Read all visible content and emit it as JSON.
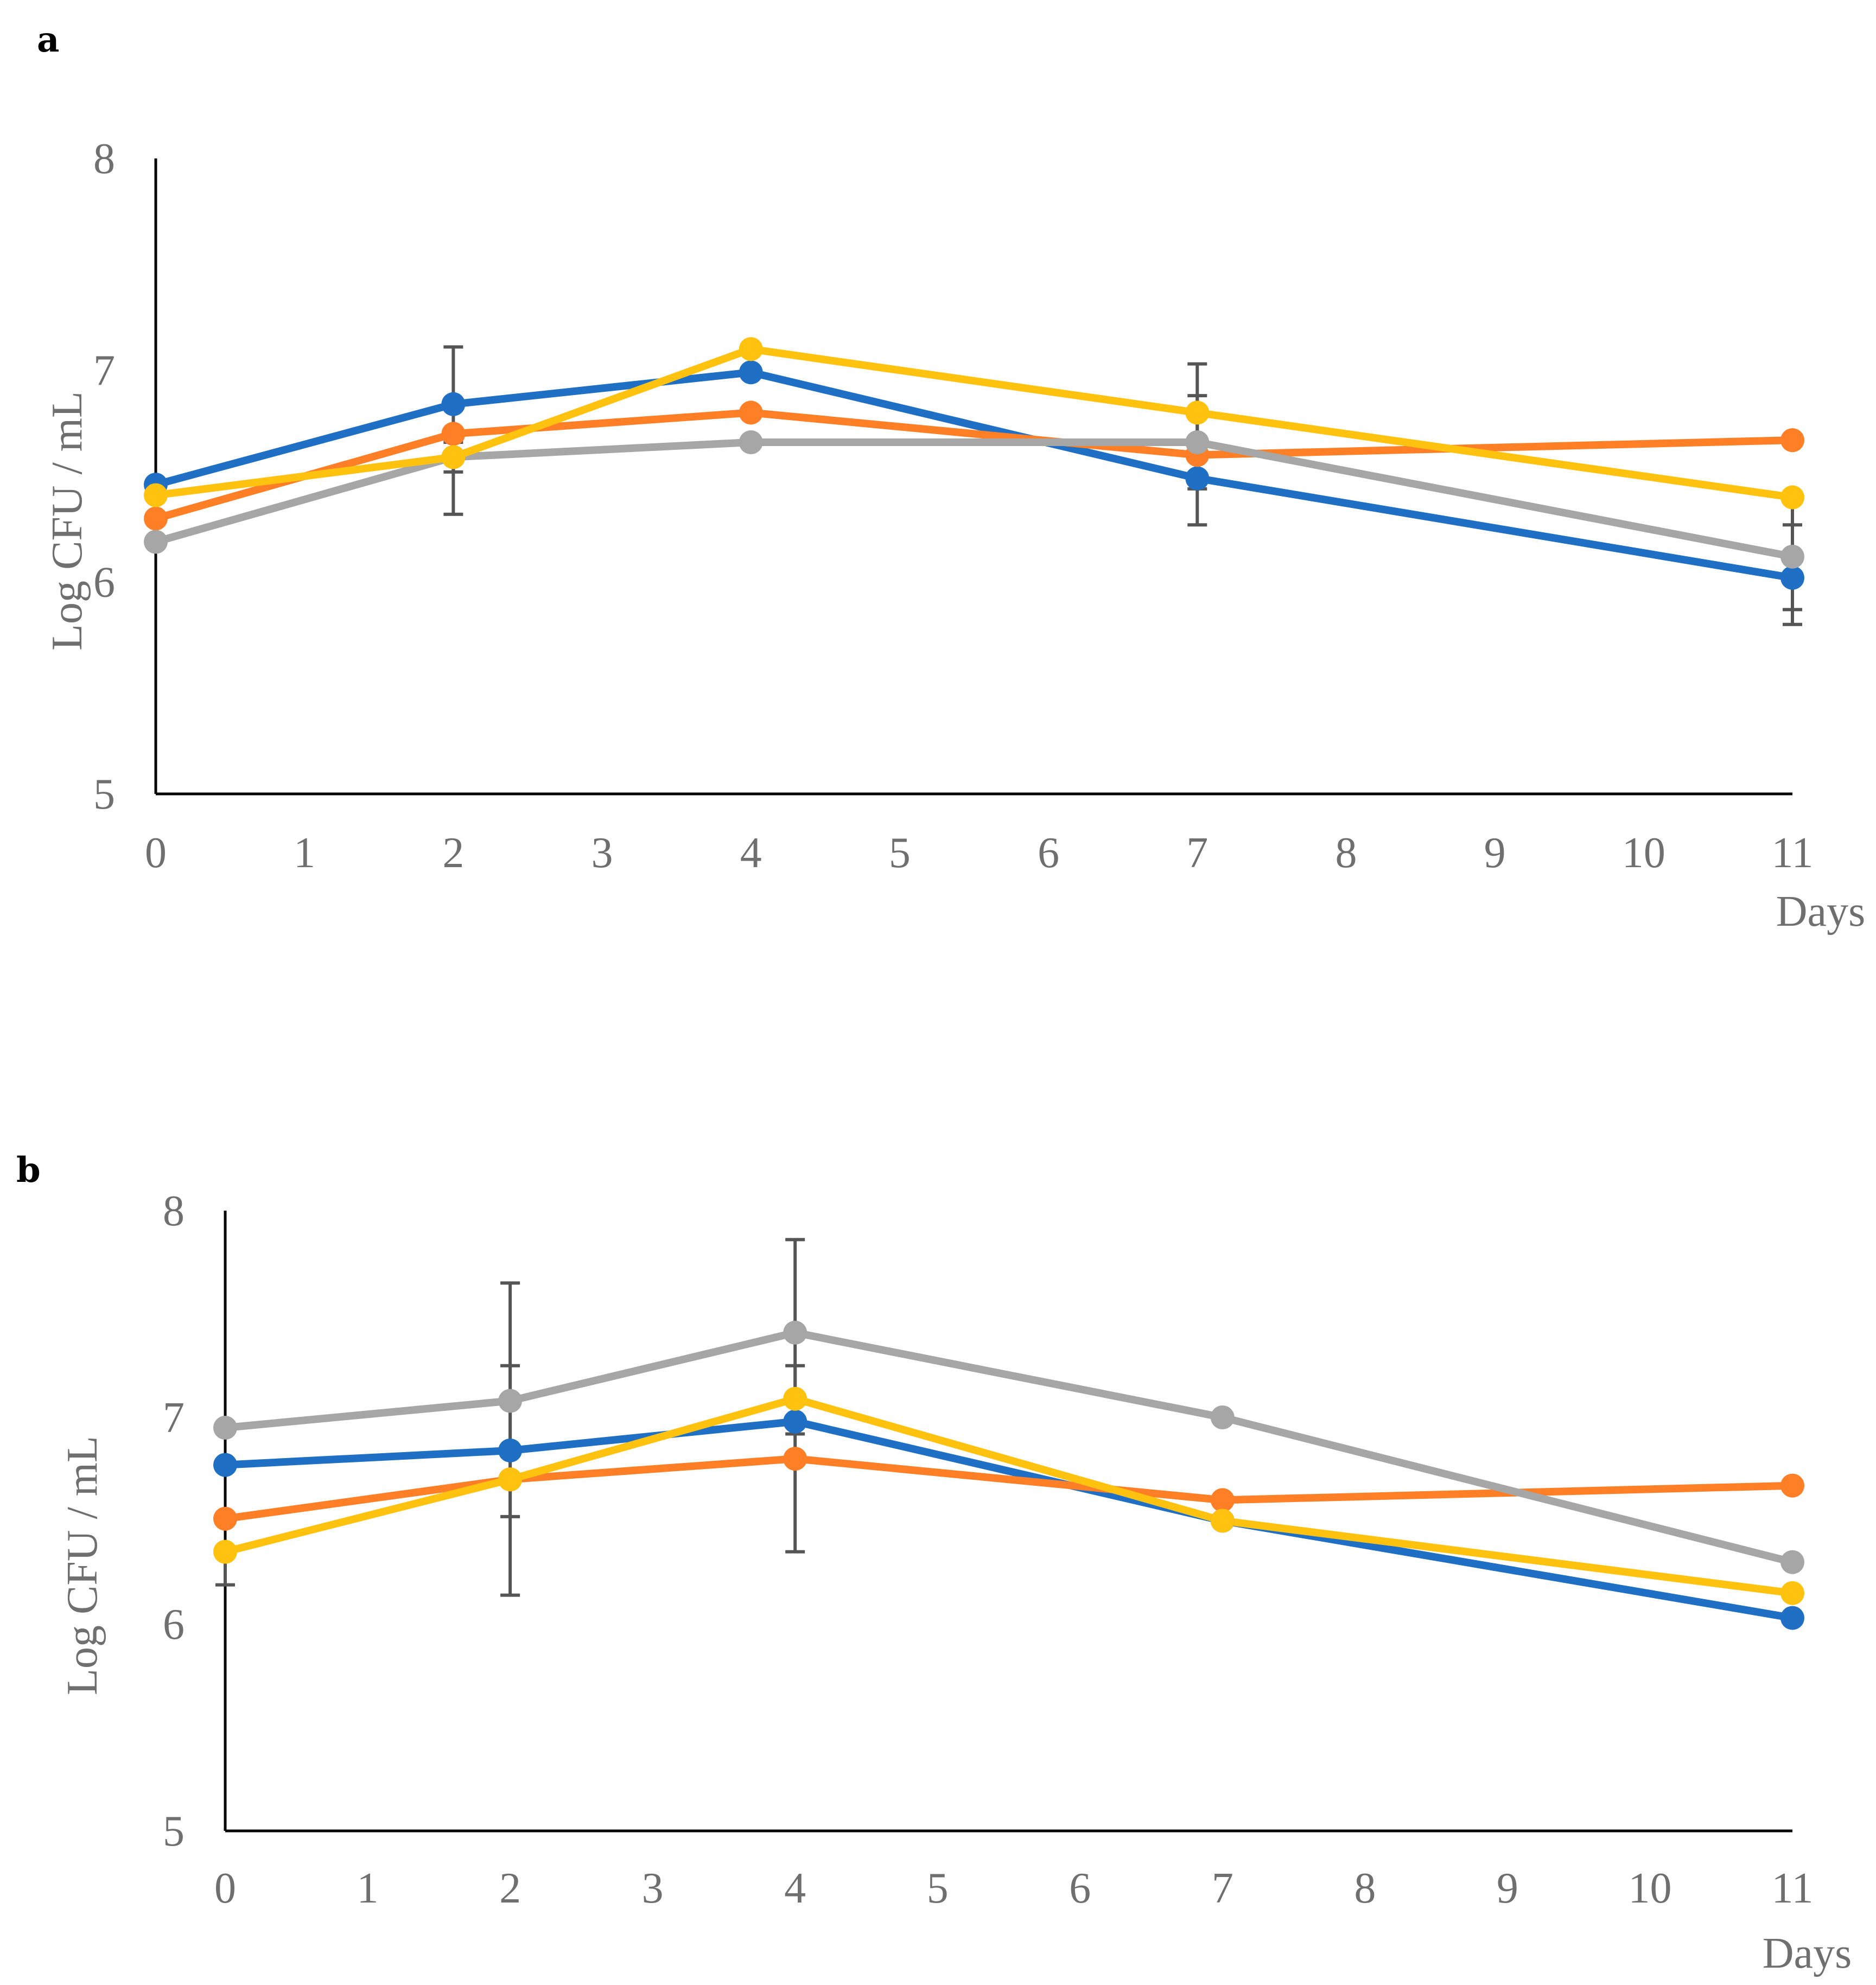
{
  "colors": {
    "blue": "#1f6fc5",
    "orange": "#ff7f27",
    "gray": "#a6a6a6",
    "yellow": "#ffc20e",
    "axis": "#000000",
    "label": "#6f6f6f",
    "error": "#555555"
  },
  "chart_data": [
    {
      "type": "line",
      "panel": "a",
      "title": "",
      "xlabel": "Days",
      "ylabel": "Log CFU / mL",
      "xlim": [
        0,
        11
      ],
      "ylim": [
        5,
        8
      ],
      "xticks": [
        "0",
        "1",
        "2",
        "3",
        "4",
        "5",
        "6",
        "7",
        "8",
        "9",
        "10",
        "11"
      ],
      "yticks": [
        "5",
        "6",
        "7",
        "8"
      ],
      "x": [
        0,
        2,
        4,
        7,
        11
      ],
      "series": [
        {
          "name": "blue",
          "color": "#1f6fc5",
          "values": [
            6.46,
            6.84,
            6.99,
            6.49,
            6.02
          ]
        },
        {
          "name": "orange",
          "color": "#ff7f27",
          "values": [
            6.3,
            6.7,
            6.8,
            6.6,
            6.67
          ]
        },
        {
          "name": "gray",
          "color": "#a6a6a6",
          "values": [
            6.19,
            6.59,
            6.66,
            6.66,
            6.12
          ]
        },
        {
          "name": "yellow",
          "color": "#ffc20e",
          "values": [
            6.41,
            6.59,
            7.1,
            6.8,
            6.4
          ]
        }
      ],
      "error_bars": [
        {
          "x": 2,
          "low": 6.32,
          "high": 7.11
        },
        {
          "x": 2,
          "low": 6.52,
          "high": 6.66
        },
        {
          "x": 7,
          "low": 6.27,
          "high": 7.03
        },
        {
          "x": 7,
          "low": 6.44,
          "high": 6.88
        },
        {
          "x": 11,
          "low": 5.8,
          "high": 6.27
        },
        {
          "x": 11,
          "low": 5.87,
          "high": 6.4
        }
      ]
    },
    {
      "type": "line",
      "panel": "b",
      "title": "",
      "xlabel": "Days",
      "ylabel": "Log CFU / mL",
      "xlim": [
        0,
        11
      ],
      "ylim": [
        5,
        8
      ],
      "xticks": [
        "0",
        "1",
        "2",
        "3",
        "4",
        "5",
        "6",
        "7",
        "8",
        "9",
        "10",
        "11"
      ],
      "yticks": [
        "5",
        "6",
        "7",
        "8"
      ],
      "x": [
        0,
        2,
        4,
        7,
        11
      ],
      "series": [
        {
          "name": "blue",
          "color": "#1f6fc5",
          "values": [
            6.77,
            6.84,
            6.98,
            6.5,
            6.03
          ]
        },
        {
          "name": "orange",
          "color": "#ff7f27",
          "values": [
            6.51,
            6.7,
            6.8,
            6.6,
            6.67
          ]
        },
        {
          "name": "gray",
          "color": "#a6a6a6",
          "values": [
            6.95,
            7.08,
            7.41,
            7.0,
            6.3
          ]
        },
        {
          "name": "yellow",
          "color": "#ffc20e",
          "values": [
            6.35,
            6.7,
            7.09,
            6.5,
            6.15
          ]
        }
      ],
      "error_bars": [
        {
          "x": 0,
          "low": 6.19,
          "high": 6.35
        },
        {
          "x": 2,
          "low": 6.14,
          "high": 7.65
        },
        {
          "x": 2,
          "low": 6.52,
          "high": 7.25
        },
        {
          "x": 4,
          "low": 6.35,
          "high": 7.86
        },
        {
          "x": 4,
          "low": 6.92,
          "high": 7.25
        }
      ]
    }
  ]
}
